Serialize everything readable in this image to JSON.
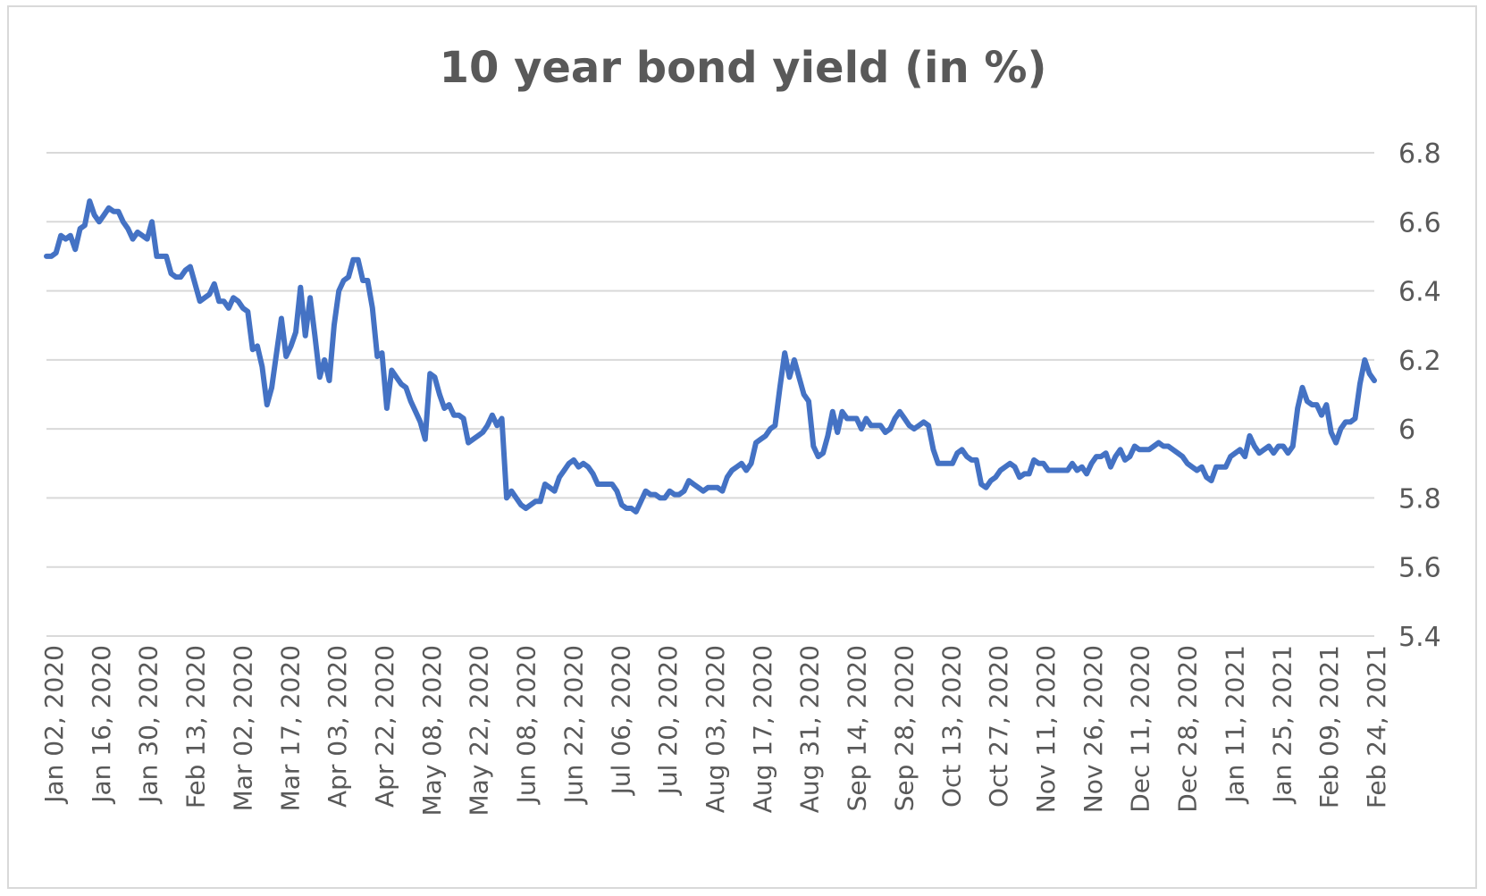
{
  "chart_data": {
    "type": "line",
    "title": "10 year bond yield (in %)",
    "xlabel": "",
    "ylabel": "",
    "ylim": [
      5.4,
      6.8
    ],
    "yticks": [
      "5.4",
      "5.6",
      "5.8",
      "6",
      "6.2",
      "6.4",
      "6.6",
      "6.8"
    ],
    "y_axis_side": "right",
    "grid": "horizontal",
    "legend": "none",
    "series_color": "#4472C4",
    "grid_color": "#d9d9d9",
    "text_color": "#595959",
    "xticks": [
      "Jan 02, 2020",
      "Jan 16, 2020",
      "Jan 30, 2020",
      "Feb 13, 2020",
      "Mar 02, 2020",
      "Mar 17, 2020",
      "Apr 03, 2020",
      "Apr 22, 2020",
      "May 08, 2020",
      "May 22, 2020",
      "Jun 08, 2020",
      "Jun 22, 2020",
      "Jul 06, 2020",
      "Jul 20, 2020",
      "Aug 03, 2020",
      "Aug 17, 2020",
      "Aug 31, 2020",
      "Sep 14, 2020",
      "Sep 28, 2020",
      "Oct 13, 2020",
      "Oct 27, 2020",
      "Nov 11, 2020",
      "Nov 26, 2020",
      "Dec 11, 2020",
      "Dec 28, 2020",
      "Jan 11, 2021",
      "Jan 25, 2021",
      "Feb 09, 2021",
      "Feb 24, 2021"
    ],
    "series": [
      {
        "values": [
          6.5,
          6.5,
          6.51,
          6.56,
          6.55,
          6.56,
          6.52,
          6.58,
          6.59,
          6.66,
          6.62,
          6.6,
          6.62,
          6.64,
          6.63,
          6.63,
          6.6,
          6.58,
          6.55,
          6.57,
          6.56,
          6.55,
          6.6,
          6.5,
          6.5,
          6.5,
          6.45,
          6.44,
          6.44,
          6.46,
          6.47,
          6.42,
          6.37,
          6.38,
          6.39,
          6.42,
          6.37,
          6.37,
          6.35,
          6.38,
          6.37,
          6.35,
          6.34,
          6.23,
          6.24,
          6.18,
          6.07,
          6.12,
          6.22,
          6.32,
          6.21,
          6.24,
          6.28,
          6.41,
          6.27,
          6.38,
          6.27,
          6.15,
          6.2,
          6.14,
          6.3,
          6.4,
          6.43,
          6.44,
          6.49,
          6.49,
          6.43,
          6.43,
          6.35,
          6.21,
          6.22,
          6.06,
          6.17,
          6.15,
          6.13,
          6.12,
          6.08,
          6.05,
          6.02,
          5.97,
          6.16,
          6.15,
          6.1,
          6.06,
          6.07,
          6.04,
          6.04,
          6.03,
          5.96,
          5.97,
          5.98,
          5.99,
          6.01,
          6.04,
          6.01,
          6.03,
          5.8,
          5.82,
          5.8,
          5.78,
          5.77,
          5.78,
          5.79,
          5.79,
          5.84,
          5.83,
          5.82,
          5.86,
          5.88,
          5.9,
          5.91,
          5.89,
          5.9,
          5.89,
          5.87,
          5.84,
          5.84,
          5.84,
          5.84,
          5.82,
          5.78,
          5.77,
          5.77,
          5.76,
          5.79,
          5.82,
          5.81,
          5.81,
          5.8,
          5.8,
          5.82,
          5.81,
          5.81,
          5.82,
          5.85,
          5.84,
          5.83,
          5.82,
          5.83,
          5.83,
          5.83,
          5.82,
          5.86,
          5.88,
          5.89,
          5.9,
          5.88,
          5.9,
          5.96,
          5.97,
          5.98,
          6.0,
          6.01,
          6.12,
          6.22,
          6.15,
          6.2,
          6.15,
          6.1,
          6.08,
          5.95,
          5.92,
          5.93,
          5.98,
          6.05,
          5.99,
          6.05,
          6.03,
          6.03,
          6.03,
          6.0,
          6.03,
          6.01,
          6.01,
          6.01,
          5.99,
          6.0,
          6.03,
          6.05,
          6.03,
          6.01,
          6.0,
          6.01,
          6.02,
          6.01,
          5.94,
          5.9,
          5.9,
          5.9,
          5.9,
          5.93,
          5.94,
          5.92,
          5.91,
          5.91,
          5.84,
          5.83,
          5.85,
          5.86,
          5.88,
          5.89,
          5.9,
          5.89,
          5.86,
          5.87,
          5.87,
          5.91,
          5.9,
          5.9,
          5.88,
          5.88,
          5.88,
          5.88,
          5.88,
          5.9,
          5.88,
          5.89,
          5.87,
          5.9,
          5.92,
          5.92,
          5.93,
          5.89,
          5.92,
          5.94,
          5.91,
          5.92,
          5.95,
          5.94,
          5.94,
          5.94,
          5.95,
          5.96,
          5.95,
          5.95,
          5.94,
          5.93,
          5.92,
          5.9,
          5.89,
          5.88,
          5.89,
          5.86,
          5.85,
          5.89,
          5.89,
          5.89,
          5.92,
          5.93,
          5.94,
          5.92,
          5.98,
          5.95,
          5.93,
          5.94,
          5.95,
          5.93,
          5.95,
          5.95,
          5.93,
          5.95,
          6.06,
          6.12,
          6.08,
          6.07,
          6.07,
          6.04,
          6.07,
          5.99,
          5.96,
          6.0,
          6.02,
          6.02,
          6.03,
          6.13,
          6.2,
          6.16,
          6.14
        ]
      }
    ]
  }
}
